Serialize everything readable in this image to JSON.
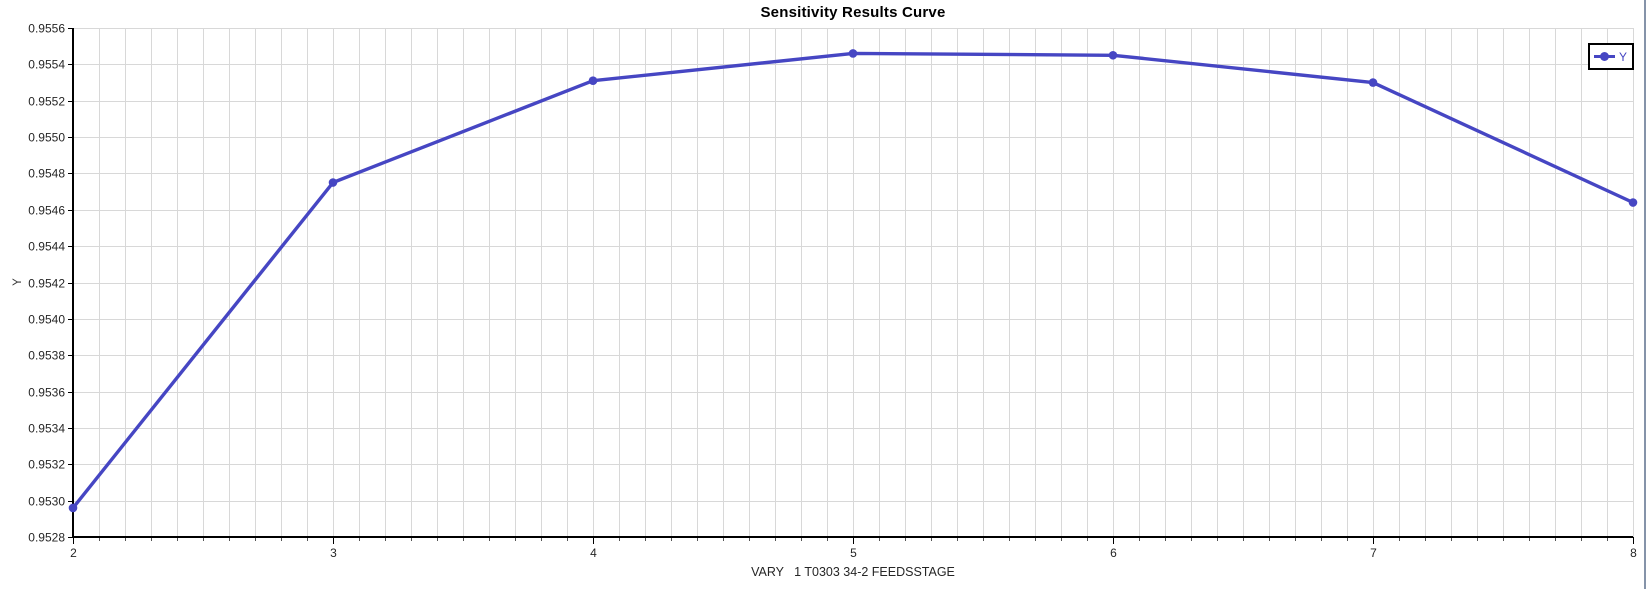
{
  "window": {
    "background": "#ffffff",
    "right_divider_color": "#8593a9"
  },
  "chart_data": {
    "type": "line",
    "title": "Sensitivity Results Curve",
    "xlabel": "VARY   1 T0303 34-2 FEEDSSTAGE",
    "ylabel": "Y",
    "xlim": [
      2,
      8
    ],
    "ylim": [
      0.9528,
      0.9556
    ],
    "x_major_ticks": [
      2,
      3,
      4,
      5,
      6,
      7,
      8
    ],
    "x_minor_step": 0.1,
    "y_tick_step": 0.0002,
    "y_tick_decimals": 4,
    "grid": true,
    "legend": {
      "position": "top-right",
      "entries": [
        "Y"
      ]
    },
    "series": [
      {
        "name": "Y",
        "color": "#4646c3",
        "marker": "circle",
        "x": [
          2,
          3,
          4,
          5,
          6,
          7,
          8
        ],
        "y": [
          0.95296,
          0.95475,
          0.95531,
          0.95546,
          0.95545,
          0.9553,
          0.95464
        ]
      }
    ],
    "colors": {
      "grid": "#d8d8d8",
      "axis": "#000000",
      "minor_tick": "#555555",
      "tick_label": "#262626",
      "title": "#000000"
    }
  }
}
